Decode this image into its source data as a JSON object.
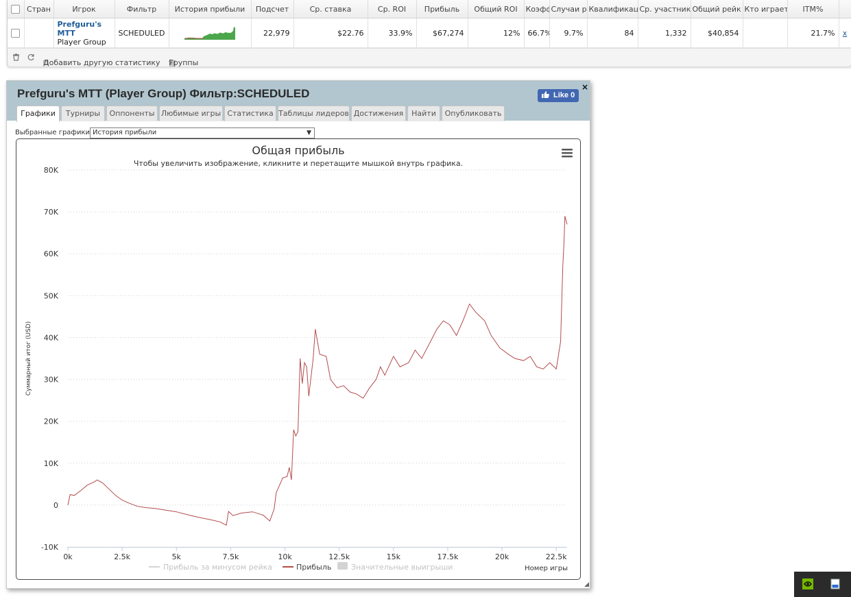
{
  "table": {
    "headers": [
      "",
      "Стран",
      "Игрок",
      "Фильтр",
      "История прибыли",
      "Подсчет",
      "Ср. ставка",
      "Ср. ROI",
      "Прибыль",
      "Общий ROI",
      "Коэфф",
      "Случаи р",
      "Квалификац",
      "Ср. участник",
      "Общий рейк",
      "Кто играет",
      "ITM%",
      ""
    ],
    "row": {
      "player_name": "Prefguru's MTT",
      "player_type": "Player Group",
      "filter": "SCHEDULED",
      "count": "22,979",
      "avg_stake": "$22.76",
      "avg_roi": "33.9%",
      "profit": "$67,274",
      "total_roi": "12%",
      "coeff": "66.7%",
      "cases": "9.7%",
      "qualif": "84",
      "avg_participants": "1,332",
      "total_rake": "$40,854",
      "who_plays": "",
      "itm": "21.7%",
      "remove": "x"
    }
  },
  "toolbar": {
    "add_stats": "Добавить другую статистику",
    "groups": "Группы"
  },
  "popup": {
    "title": "Prefguru's MTT (Player Group) Фильтр:SCHEDULED",
    "close": "×",
    "like_label": "Like 0",
    "tabs": [
      "Графики",
      "Турниры",
      "Оппоненты",
      "Любимые игры",
      "Статистика",
      "Таблицы лидеров",
      "Достижения",
      "Найти",
      "Опубликовать"
    ],
    "active_tab": "Графики",
    "select_label": "Выбранные графики:",
    "select_value": "История прибыли"
  },
  "chart_data": {
    "type": "line",
    "title": "Общая прибыль",
    "subtitle": "Чтобы увеличить изображение, кликните и перетащите мышкой внутрь графика.",
    "xlabel": "Номер игры",
    "ylabel": "Суммарный итог (USD)",
    "xlim": [
      0,
      23000
    ],
    "ylim": [
      -10000,
      80000
    ],
    "x_ticks": [
      "0k",
      "2.5k",
      "5k",
      "7.5k",
      "10k",
      "12.5k",
      "15k",
      "17.5k",
      "20k",
      "22.5k"
    ],
    "y_ticks": [
      "-10K",
      "0",
      "10K",
      "20K",
      "30K",
      "40K",
      "50K",
      "60K",
      "70K",
      "80K"
    ],
    "grid": true,
    "legend_position": "bottom",
    "series": [
      {
        "name": "Прибыль за минусом рейка",
        "visible": false,
        "color": "#c0c0c0",
        "points": []
      },
      {
        "name": "Прибыль",
        "visible": true,
        "color": "#b34b4b",
        "points": [
          [
            0,
            0
          ],
          [
            100,
            2500
          ],
          [
            300,
            2300
          ],
          [
            600,
            3500
          ],
          [
            900,
            4800
          ],
          [
            1200,
            5500
          ],
          [
            1350,
            6000
          ],
          [
            1600,
            5300
          ],
          [
            1900,
            3800
          ],
          [
            2200,
            2300
          ],
          [
            2500,
            1200
          ],
          [
            2800,
            500
          ],
          [
            3200,
            -300
          ],
          [
            3600,
            -600
          ],
          [
            4000,
            -800
          ],
          [
            4500,
            -1200
          ],
          [
            5000,
            -1600
          ],
          [
            5500,
            -2300
          ],
          [
            6000,
            -2900
          ],
          [
            6500,
            -3400
          ],
          [
            7000,
            -4000
          ],
          [
            7300,
            -4800
          ],
          [
            7400,
            -1500
          ],
          [
            7600,
            -2500
          ],
          [
            8000,
            -1900
          ],
          [
            8500,
            -1600
          ],
          [
            9000,
            -2400
          ],
          [
            9300,
            -3800
          ],
          [
            9500,
            -1000
          ],
          [
            9600,
            3000
          ],
          [
            9900,
            6500
          ],
          [
            10100,
            6800
          ],
          [
            10200,
            9000
          ],
          [
            10300,
            6000
          ],
          [
            10400,
            18000
          ],
          [
            10500,
            16500
          ],
          [
            10600,
            17500
          ],
          [
            10700,
            35000
          ],
          [
            10800,
            29000
          ],
          [
            10900,
            34000
          ],
          [
            11000,
            33000
          ],
          [
            11100,
            26000
          ],
          [
            11300,
            35000
          ],
          [
            11400,
            42000
          ],
          [
            11600,
            36000
          ],
          [
            11900,
            35500
          ],
          [
            12100,
            30000
          ],
          [
            12400,
            28000
          ],
          [
            12700,
            28500
          ],
          [
            13000,
            27000
          ],
          [
            13300,
            26500
          ],
          [
            13600,
            25500
          ],
          [
            13900,
            28000
          ],
          [
            14200,
            30000
          ],
          [
            14400,
            33000
          ],
          [
            14600,
            31000
          ],
          [
            15000,
            35500
          ],
          [
            15300,
            33000
          ],
          [
            15700,
            34000
          ],
          [
            16000,
            37000
          ],
          [
            16300,
            35000
          ],
          [
            16700,
            39000
          ],
          [
            17000,
            42000
          ],
          [
            17300,
            44000
          ],
          [
            17600,
            43000
          ],
          [
            17900,
            40500
          ],
          [
            18200,
            44000
          ],
          [
            18500,
            48000
          ],
          [
            18800,
            46000
          ],
          [
            19200,
            44000
          ],
          [
            19500,
            40500
          ],
          [
            19900,
            37500
          ],
          [
            20300,
            36000
          ],
          [
            20600,
            35000
          ],
          [
            21000,
            34500
          ],
          [
            21300,
            35500
          ],
          [
            21600,
            33000
          ],
          [
            21900,
            32500
          ],
          [
            22200,
            34000
          ],
          [
            22500,
            32500
          ],
          [
            22700,
            39000
          ],
          [
            22800,
            57000
          ],
          [
            22850,
            62000
          ],
          [
            22900,
            69000
          ],
          [
            23000,
            67000
          ]
        ]
      },
      {
        "name": "Значительные выигрыши",
        "visible": false,
        "color": "#c0c0c0",
        "points": []
      }
    ]
  },
  "mini_chart": {
    "color": "#4ca64c"
  },
  "tray": {
    "icons": [
      "nvidia-icon",
      "window-icon"
    ]
  }
}
